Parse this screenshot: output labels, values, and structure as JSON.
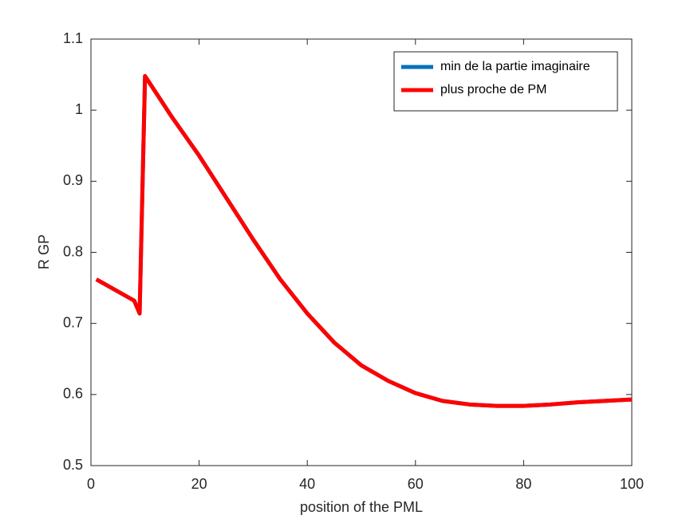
{
  "chart_data": {
    "type": "line",
    "xlabel": "position of the PML",
    "ylabel": "R GP",
    "x": [
      1,
      8,
      9,
      10,
      15,
      20,
      25,
      30,
      35,
      40,
      45,
      50,
      55,
      60,
      65,
      70,
      75,
      80,
      85,
      90,
      95,
      100
    ],
    "series": [
      {
        "name": "min de la partie imaginaire",
        "color": "#0072bd",
        "values": [
          0.762,
          0.732,
          0.714,
          1.048,
          0.99,
          0.936,
          0.877,
          0.818,
          0.762,
          0.714,
          0.673,
          0.641,
          0.619,
          0.602,
          0.591,
          0.586,
          0.584,
          0.584,
          0.586,
          0.589,
          0.591,
          0.593
        ]
      },
      {
        "name": "plus proche de PM",
        "color": "#ff0000",
        "values": [
          0.762,
          0.732,
          0.714,
          1.048,
          0.99,
          0.936,
          0.877,
          0.818,
          0.762,
          0.714,
          0.673,
          0.641,
          0.619,
          0.602,
          0.591,
          0.586,
          0.584,
          0.584,
          0.586,
          0.589,
          0.591,
          0.593
        ]
      }
    ],
    "xlim": [
      0,
      100
    ],
    "xticks": [
      0,
      20,
      40,
      60,
      80,
      100
    ],
    "ylim": [
      0.5,
      1.1
    ],
    "yticks": [
      0.5,
      0.6,
      0.7,
      0.8,
      0.9,
      1,
      1.1
    ],
    "legend": "top-right",
    "grid": false
  }
}
